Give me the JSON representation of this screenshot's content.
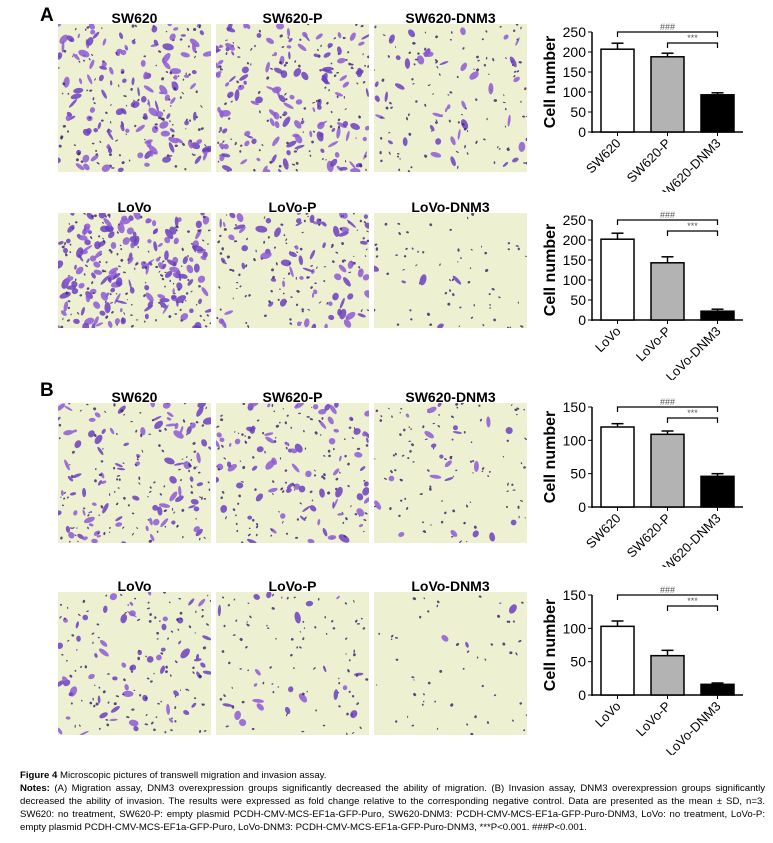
{
  "panels": [
    {
      "letter": "A",
      "rows": [
        {
          "titles": [
            "SW620",
            "SW620-P",
            "SW620-DNM3"
          ],
          "density": [
            0.9,
            0.85,
            0.45
          ]
        },
        {
          "titles": [
            "LoVo",
            "LoVo-P",
            "LoVo-DNM3"
          ],
          "density": [
            1.0,
            0.6,
            0.15
          ]
        }
      ]
    },
    {
      "letter": "B",
      "rows": [
        {
          "titles": [
            "SW620",
            "SW620-P",
            "SW620-DNM3"
          ],
          "density": [
            0.7,
            0.65,
            0.35
          ]
        },
        {
          "titles": [
            "LoVo",
            "LoVo-P",
            "LoVo-DNM3"
          ],
          "density": [
            0.55,
            0.3,
            0.1
          ]
        }
      ]
    }
  ],
  "chart_data": [
    {
      "type": "bar",
      "ylabel": "Cell number",
      "categories": [
        "SW620",
        "SW620-P",
        "SW620-DNM3"
      ],
      "values": [
        207,
        188,
        93
      ],
      "errors": [
        15,
        9,
        5
      ],
      "ylim": [
        0,
        250
      ],
      "yticks": [
        "0",
        "50",
        "100",
        "150",
        "200",
        "250"
      ],
      "colors": [
        "#ffffff",
        "#b3b3b3",
        "#000000"
      ],
      "annotations": [
        "###",
        "***"
      ]
    },
    {
      "type": "bar",
      "ylabel": "Cell number",
      "categories": [
        "LoVo",
        "LoVo-P",
        "LoVo-DNM3"
      ],
      "values": [
        202,
        143,
        22
      ],
      "errors": [
        15,
        15,
        5
      ],
      "ylim": [
        0,
        250
      ],
      "yticks": [
        "0",
        "50",
        "100",
        "150",
        "200",
        "250"
      ],
      "colors": [
        "#ffffff",
        "#b3b3b3",
        "#000000"
      ],
      "annotations": [
        "###",
        "***"
      ]
    },
    {
      "type": "bar",
      "ylabel": "Cell number",
      "categories": [
        "SW620",
        "SW620-P",
        "SW620-DNM3"
      ],
      "values": [
        120,
        109,
        46
      ],
      "errors": [
        5,
        5,
        4
      ],
      "ylim": [
        0,
        150
      ],
      "yticks": [
        "0",
        "50",
        "100",
        "150"
      ],
      "colors": [
        "#ffffff",
        "#b3b3b3",
        "#000000"
      ],
      "annotations": [
        "###",
        "***"
      ]
    },
    {
      "type": "bar",
      "ylabel": "Cell number",
      "categories": [
        "LoVo",
        "LoVo-P",
        "LoVo-DNM3"
      ],
      "values": [
        103,
        59,
        16
      ],
      "errors": [
        8,
        8,
        2
      ],
      "ylim": [
        0,
        150
      ],
      "yticks": [
        "0",
        "50",
        "100",
        "150"
      ],
      "colors": [
        "#ffffff",
        "#b3b3b3",
        "#000000"
      ],
      "annotations": [
        "###",
        "***"
      ]
    }
  ],
  "caption": {
    "figure_label": "Figure 4",
    "title": "Microscopic pictures of transwell migration and invasion assay.",
    "notes_label": "Notes:",
    "notes": "(A) Migration assay, DNM3 overexpression groups significantly decreased the ability of migration. (B) Invasion assay, DNM3 overexpression groups significantly decreased the ability of invasion. The results were expressed as fold change relative to the corresponding negative control. Data are presented as the mean ± SD, n=3. SW620: no treatment, SW620-P: empty plasmid PCDH-CMV-MCS-EF1a-GFP-Puro, SW620-DNM3: PCDH-CMV-MCS-EF1a-GFP-Puro-DNM3, LoVo: no treatment, LoVo-P: empty plasmid PCDH-CMV-MCS-EF1a-GFP-Puro, LoVo-DNM3: PCDH-CMV-MCS-EF1a-GFP-Puro-DNM3, ***P<0.001. ###P<0.001."
  }
}
